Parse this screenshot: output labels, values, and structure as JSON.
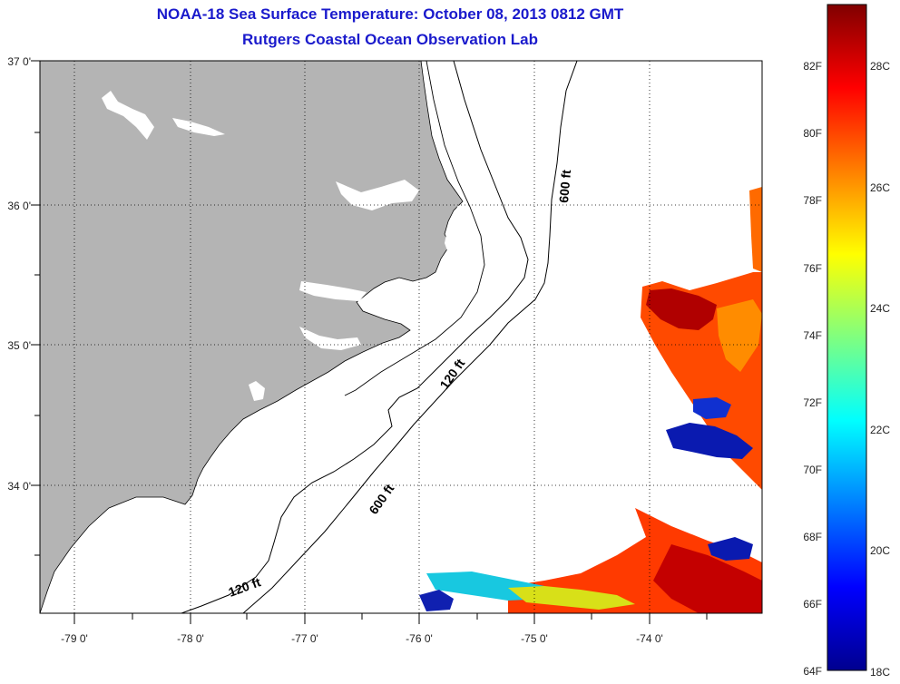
{
  "title": "NOAA-18 Sea Surface Temperature:  October 08, 2013 0812 GMT",
  "subtitle": "Rutgers Coastal Ocean Observation Lab",
  "lat_labels": [
    "37 0'",
    "36 0'",
    "35 0'",
    "34 0'"
  ],
  "lon_labels": [
    "-79 0'",
    "-78 0'",
    "-77 0'",
    "-76 0'",
    "-75 0'",
    "-74 0'"
  ],
  "contour_labels": [
    "600 ft",
    "120 ft",
    "600 ft",
    "120 ft"
  ],
  "colorbar": {
    "fahrenheit_labels": [
      "82F",
      "80F",
      "78F",
      "76F",
      "74F",
      "72F",
      "70F",
      "68F",
      "66F",
      "64F"
    ],
    "celsius_labels": [
      "28C",
      "26C",
      "24C",
      "22C",
      "20C",
      "18C"
    ],
    "range_celsius": [
      18,
      29.5
    ],
    "colormap": "jet"
  },
  "colors": {
    "title": "#1a1acc",
    "land": "#b4b4b4",
    "ocean": "#ffffff",
    "contour": "#000000",
    "grid": "#000000"
  }
}
